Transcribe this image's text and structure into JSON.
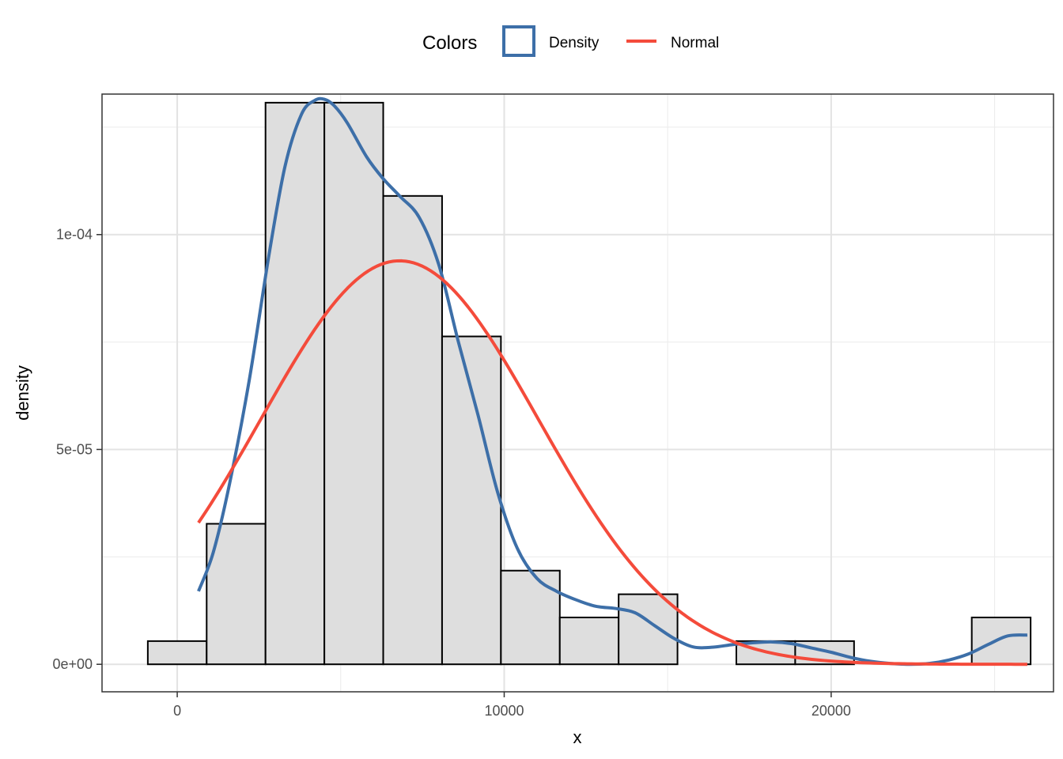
{
  "chart_data": {
    "type": "histogram",
    "xlabel": "x",
    "ylabel": "density",
    "xlim": [
      -2300,
      26800
    ],
    "ylim": [
      -6.4e-06,
      0.0001327
    ],
    "x_ticks": [
      0,
      10000,
      20000
    ],
    "x_tick_labels": [
      "0",
      "10000",
      "20000"
    ],
    "x_minor_ticks": [
      5000,
      15000,
      25000
    ],
    "y_ticks": [
      0,
      5e-05,
      0.0001
    ],
    "y_tick_labels": [
      "0e+00",
      "5e-05",
      "1e-04"
    ],
    "y_minor_ticks": [
      2.5e-05,
      7.5e-05,
      0.000125
    ],
    "grid": true,
    "legend": {
      "title": "Colors",
      "position": "top",
      "entries": [
        {
          "label": "Density",
          "color": "#3D6FA8",
          "kind": "box"
        },
        {
          "label": "Normal",
          "color": "#F44B3B",
          "kind": "line"
        }
      ]
    },
    "histogram": {
      "fill": "#DEDEDE",
      "stroke": "#000000",
      "bins": [
        {
          "x0": -900,
          "x1": 900,
          "density": 5.4e-06
        },
        {
          "x0": 900,
          "x1": 2700,
          "density": 3.27e-05
        },
        {
          "x0": 2700,
          "x1": 4500,
          "density": 0.0001307
        },
        {
          "x0": 4500,
          "x1": 6300,
          "density": 0.0001307
        },
        {
          "x0": 6300,
          "x1": 8100,
          "density": 0.000109
        },
        {
          "x0": 8100,
          "x1": 9900,
          "density": 7.63e-05
        },
        {
          "x0": 9900,
          "x1": 11700,
          "density": 2.18e-05
        },
        {
          "x0": 11700,
          "x1": 13500,
          "density": 1.09e-05
        },
        {
          "x0": 13500,
          "x1": 15300,
          "density": 1.63e-05
        },
        {
          "x0": 15300,
          "x1": 17100,
          "density": 0
        },
        {
          "x0": 17100,
          "x1": 18900,
          "density": 5.4e-06
        },
        {
          "x0": 18900,
          "x1": 20700,
          "density": 5.4e-06
        },
        {
          "x0": 20700,
          "x1": 22500,
          "density": 0
        },
        {
          "x0": 22500,
          "x1": 24300,
          "density": 0
        },
        {
          "x0": 24300,
          "x1": 26100,
          "density": 1.09e-05
        }
      ]
    },
    "series": [
      {
        "name": "Density",
        "color": "#3D6FA8",
        "x": [
          650,
          1100,
          1600,
          2200,
          2800,
          3300,
          3800,
          4200,
          4500,
          4800,
          5200,
          5800,
          6300,
          6800,
          7400,
          8000,
          8600,
          9200,
          9800,
          10400,
          11000,
          11600,
          12200,
          12800,
          13400,
          14000,
          14600,
          15200,
          15800,
          16400,
          17000,
          17600,
          18200,
          18800,
          19400,
          20000,
          20600,
          21200,
          21800,
          22400,
          23000,
          23600,
          24200,
          24800,
          25400,
          26000
        ],
        "y": [
          1.7e-05,
          2.6e-05,
          4.2e-05,
          6.6e-05,
          9.5e-05,
          0.000116,
          0.000128,
          0.0001312,
          0.0001315,
          0.00013,
          0.000126,
          0.000118,
          0.000113,
          0.000109,
          0.000104,
          9.3e-05,
          7.5e-05,
          5.8e-05,
          4e-05,
          2.7e-05,
          2e-05,
          1.7e-05,
          1.5e-05,
          1.35e-05,
          1.3e-05,
          1.2e-05,
          9e-06,
          6e-06,
          4e-06,
          4e-06,
          4.6e-06,
          5e-06,
          5.2e-06,
          4.8e-06,
          3.8e-06,
          2.8e-06,
          1.6e-06,
          7e-07,
          2e-07,
          0.0,
          2e-07,
          1e-06,
          2.4e-06,
          4.6e-06,
          6.6e-06,
          6.8e-06
        ]
      },
      {
        "name": "Normal",
        "color": "#F44B3B",
        "normal_params": {
          "mean": 6800,
          "sd": 4250,
          "peak_density": 9.39e-05
        },
        "x_range": [
          650,
          26000
        ]
      }
    ]
  }
}
